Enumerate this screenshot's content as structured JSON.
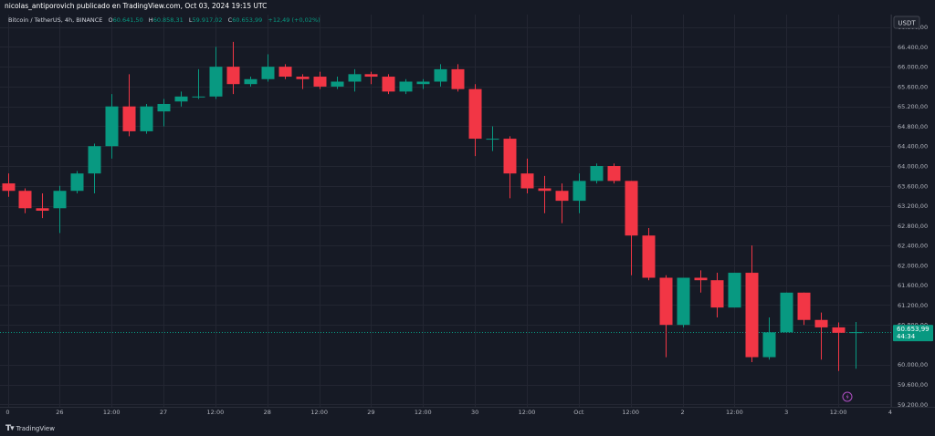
{
  "header": {
    "credit": "nicolas_antiporovich publicado en TradingView.com, Oct 03, 2024 19:15 UTC"
  },
  "legend": {
    "symbol": "Bitcoin / TetherUS, 4h, BINANCE",
    "o_label": "O",
    "o_value": "60.641,50",
    "h_label": "H",
    "h_value": "60.858,31",
    "l_label": "L",
    "l_value": "59.917,02",
    "c_label": "C",
    "c_value": "60.653,99",
    "change": "+12,49 (+0,02%)"
  },
  "currency_badge": "USDT",
  "current_price": {
    "value": "60.653,99",
    "countdown": "44:34",
    "level": 60654
  },
  "footer": {
    "brand": "TradingView"
  },
  "colors": {
    "background": "#161a25",
    "up": "#089981",
    "down": "#f23645",
    "grid": "#232632",
    "text": "#b2b5be",
    "price_badge": "#089981"
  },
  "chart_data": {
    "type": "candlestick",
    "title": "Bitcoin / TetherUS, 4h, BINANCE",
    "ylim": [
      59150,
      67050
    ],
    "y_ticks": [
      {
        "value": 66800,
        "label": "66.800,00"
      },
      {
        "value": 66400,
        "label": "66.400,00"
      },
      {
        "value": 66000,
        "label": "66.000,00"
      },
      {
        "value": 65600,
        "label": "65.600,00"
      },
      {
        "value": 65200,
        "label": "65.200,00"
      },
      {
        "value": 64800,
        "label": "64.800,00"
      },
      {
        "value": 64400,
        "label": "64.400,00"
      },
      {
        "value": 64000,
        "label": "64.000,00"
      },
      {
        "value": 63600,
        "label": "63.600,00"
      },
      {
        "value": 63200,
        "label": "63.200,00"
      },
      {
        "value": 62800,
        "label": "62.800,00"
      },
      {
        "value": 62400,
        "label": "62.400,00"
      },
      {
        "value": 62000,
        "label": "62.000,00"
      },
      {
        "value": 61600,
        "label": "61.600,00"
      },
      {
        "value": 61200,
        "label": "61.200,00"
      },
      {
        "value": 60800,
        "label": "60.800,00"
      },
      {
        "value": 60000,
        "label": "60.000,00"
      },
      {
        "value": 59600,
        "label": "59.600,00"
      },
      {
        "value": 59200,
        "label": "59.200,00"
      }
    ],
    "x_ticks": [
      {
        "index": 0,
        "label": "0"
      },
      {
        "index": 3,
        "label": "26"
      },
      {
        "index": 6,
        "label": "12:00"
      },
      {
        "index": 9,
        "label": "27"
      },
      {
        "index": 12,
        "label": "12:00"
      },
      {
        "index": 15,
        "label": "28"
      },
      {
        "index": 18,
        "label": "12:00"
      },
      {
        "index": 21,
        "label": "29"
      },
      {
        "index": 24,
        "label": "12:00"
      },
      {
        "index": 27,
        "label": "30"
      },
      {
        "index": 30,
        "label": "12:00"
      },
      {
        "index": 33,
        "label": "Oct"
      },
      {
        "index": 36,
        "label": "12:00"
      },
      {
        "index": 39,
        "label": "2"
      },
      {
        "index": 42,
        "label": "12:00"
      },
      {
        "index": 45,
        "label": "3"
      },
      {
        "index": 48,
        "label": "12:00"
      },
      {
        "index": 51,
        "label": "4"
      }
    ],
    "candles": [
      {
        "o": 63650,
        "h": 63850,
        "l": 63380,
        "c": 63500
      },
      {
        "o": 63500,
        "h": 63550,
        "l": 63050,
        "c": 63150
      },
      {
        "o": 63150,
        "h": 63450,
        "l": 62950,
        "c": 63100
      },
      {
        "o": 63150,
        "h": 63600,
        "l": 62650,
        "c": 63500
      },
      {
        "o": 63500,
        "h": 63900,
        "l": 63450,
        "c": 63850
      },
      {
        "o": 63850,
        "h": 64450,
        "l": 63450,
        "c": 64400
      },
      {
        "o": 64400,
        "h": 65450,
        "l": 64150,
        "c": 65200
      },
      {
        "o": 65200,
        "h": 65850,
        "l": 64600,
        "c": 64700
      },
      {
        "o": 64700,
        "h": 65250,
        "l": 64650,
        "c": 65200
      },
      {
        "o": 65100,
        "h": 65350,
        "l": 64800,
        "c": 65250
      },
      {
        "o": 65300,
        "h": 65500,
        "l": 65200,
        "c": 65400
      },
      {
        "o": 65400,
        "h": 65950,
        "l": 65350,
        "c": 65400
      },
      {
        "o": 65400,
        "h": 66400,
        "l": 65350,
        "c": 66000
      },
      {
        "o": 66000,
        "h": 66500,
        "l": 65450,
        "c": 65650
      },
      {
        "o": 65650,
        "h": 65800,
        "l": 65600,
        "c": 65750
      },
      {
        "o": 65750,
        "h": 66250,
        "l": 65700,
        "c": 66000
      },
      {
        "o": 66000,
        "h": 66050,
        "l": 65750,
        "c": 65800
      },
      {
        "o": 65800,
        "h": 65850,
        "l": 65550,
        "c": 65750
      },
      {
        "o": 65800,
        "h": 65900,
        "l": 65550,
        "c": 65600
      },
      {
        "o": 65600,
        "h": 65800,
        "l": 65550,
        "c": 65700
      },
      {
        "o": 65700,
        "h": 65950,
        "l": 65500,
        "c": 65850
      },
      {
        "o": 65850,
        "h": 65900,
        "l": 65650,
        "c": 65800
      },
      {
        "o": 65800,
        "h": 65850,
        "l": 65450,
        "c": 65500
      },
      {
        "o": 65500,
        "h": 65750,
        "l": 65450,
        "c": 65700
      },
      {
        "o": 65650,
        "h": 65750,
        "l": 65550,
        "c": 65700
      },
      {
        "o": 65700,
        "h": 66050,
        "l": 65600,
        "c": 65950
      },
      {
        "o": 65950,
        "h": 66050,
        "l": 65500,
        "c": 65550
      },
      {
        "o": 65550,
        "h": 65650,
        "l": 64200,
        "c": 64550
      },
      {
        "o": 64550,
        "h": 64800,
        "l": 64300,
        "c": 64550
      },
      {
        "o": 64550,
        "h": 64600,
        "l": 63350,
        "c": 63850
      },
      {
        "o": 63850,
        "h": 64150,
        "l": 63450,
        "c": 63550
      },
      {
        "o": 63550,
        "h": 63800,
        "l": 63050,
        "c": 63500
      },
      {
        "o": 63500,
        "h": 63650,
        "l": 62850,
        "c": 63300
      },
      {
        "o": 63300,
        "h": 63850,
        "l": 63050,
        "c": 63700
      },
      {
        "o": 63700,
        "h": 64050,
        "l": 63650,
        "c": 64000
      },
      {
        "o": 64000,
        "h": 64050,
        "l": 63650,
        "c": 63700
      },
      {
        "o": 63700,
        "h": 63700,
        "l": 61800,
        "c": 62600
      },
      {
        "o": 62600,
        "h": 62750,
        "l": 61700,
        "c": 61750
      },
      {
        "o": 61750,
        "h": 61800,
        "l": 60150,
        "c": 60800
      },
      {
        "o": 60800,
        "h": 61750,
        "l": 60750,
        "c": 61750
      },
      {
        "o": 61750,
        "h": 61900,
        "l": 61450,
        "c": 61700
      },
      {
        "o": 61700,
        "h": 61850,
        "l": 60950,
        "c": 61150
      },
      {
        "o": 61150,
        "h": 61850,
        "l": 61150,
        "c": 61850
      },
      {
        "o": 61850,
        "h": 62400,
        "l": 60050,
        "c": 60150
      },
      {
        "o": 60150,
        "h": 60950,
        "l": 60100,
        "c": 60650
      },
      {
        "o": 60650,
        "h": 61450,
        "l": 60650,
        "c": 61450
      },
      {
        "o": 61450,
        "h": 61450,
        "l": 60800,
        "c": 60900
      },
      {
        "o": 60900,
        "h": 61050,
        "l": 60100,
        "c": 60750
      },
      {
        "o": 60750,
        "h": 60850,
        "l": 59870,
        "c": 60641
      },
      {
        "o": 60641,
        "h": 60858,
        "l": 59917,
        "c": 60654
      }
    ]
  }
}
